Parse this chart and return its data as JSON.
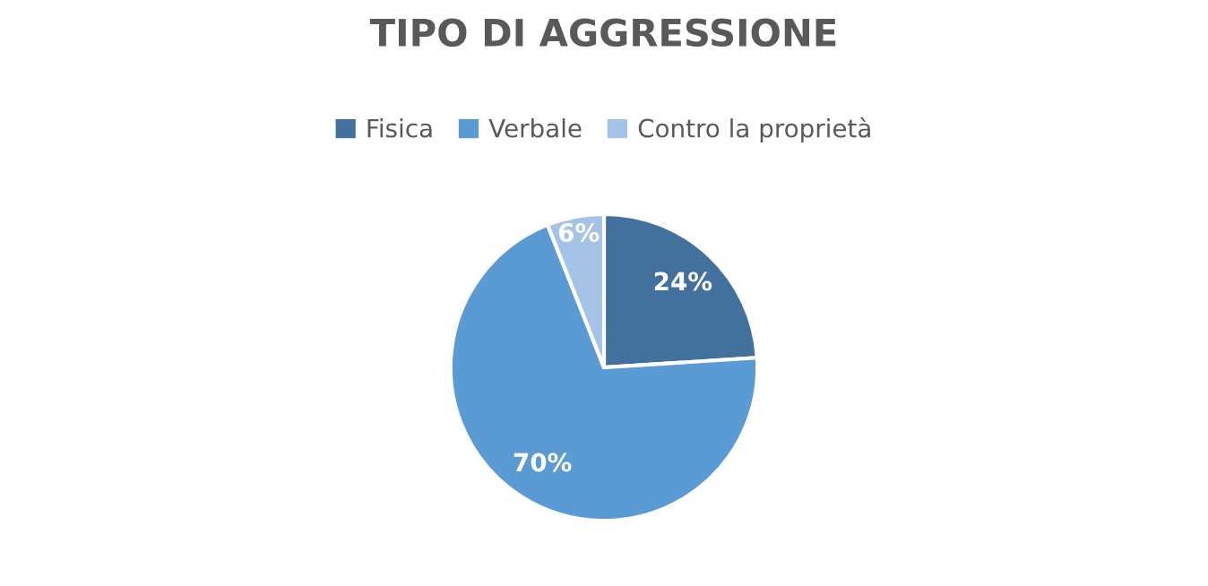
{
  "chart_data": {
    "type": "pie",
    "title": "TIPO DI AGGRESSIONE",
    "categories": [
      "Fisica",
      "Verbale",
      "Contro la proprietà"
    ],
    "values": [
      24,
      70,
      6
    ],
    "colors": [
      "#41719c",
      "#5b9bd5",
      "#a5c3e6"
    ],
    "value_labels": [
      "24%",
      "70%",
      "6%"
    ],
    "legend": "top"
  }
}
